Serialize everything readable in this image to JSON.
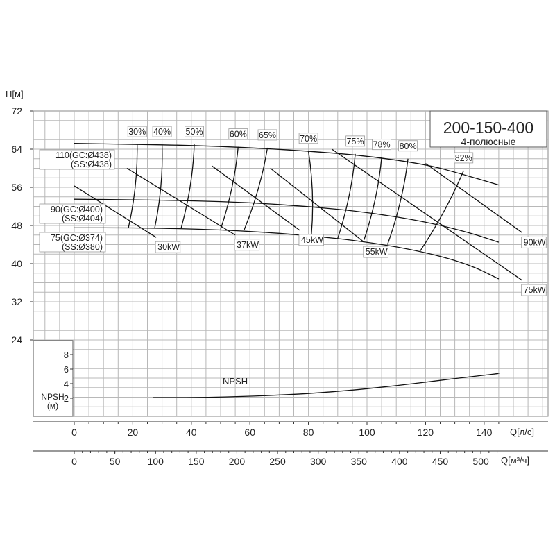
{
  "chart_data": {
    "type": "line",
    "title": "200-150-400",
    "subtitle": "4-полюсные",
    "ylabel": "H[м]",
    "xlabel": "Q[л/с]",
    "xlabel2": "Q[м³/ч]",
    "npsh_label": "NPSH",
    "npsh_ylabel": [
      "NPSH",
      "(м)"
    ],
    "y_ticks": [
      "72",
      "64",
      "56",
      "48",
      "40",
      "32",
      "24"
    ],
    "ylim": [
      24,
      72
    ],
    "x_ticks": [
      "0",
      "20",
      "40",
      "60",
      "80",
      "100",
      "120",
      "140"
    ],
    "xlim": [
      0,
      160
    ],
    "x2_ticks": [
      "0",
      "50",
      "100",
      "150",
      "200",
      "250",
      "300",
      "350",
      "400",
      "450",
      "500"
    ],
    "npsh_ticks": [
      "8",
      "6",
      "4",
      "2"
    ],
    "npsh_ylim": [
      0,
      10
    ],
    "series": [
      {
        "name": "110(GC:Ø438)\n(SS:Ø438)",
        "x": [
          0,
          20,
          40,
          60,
          80,
          100,
          120,
          130,
          145
        ],
        "y": [
          65.2,
          65.0,
          64.8,
          64.3,
          63.6,
          62.6,
          60.8,
          59.2,
          56.5
        ]
      },
      {
        "name": "90(GC:Ø400)\n(SS:Ø404)",
        "x": [
          0,
          20,
          40,
          60,
          80,
          100,
          120,
          135,
          145
        ],
        "y": [
          53.5,
          53.4,
          53.2,
          52.8,
          52.0,
          50.8,
          48.8,
          46.5,
          44.5
        ]
      },
      {
        "name": "75(GC:Ø374)\n(SS:Ø380)",
        "x": [
          0,
          20,
          40,
          60,
          80,
          100,
          120,
          135,
          145
        ],
        "y": [
          47.5,
          47.5,
          47.3,
          46.8,
          45.9,
          44.6,
          42.4,
          39.8,
          36.8
        ]
      }
    ],
    "efficiency": [
      {
        "label": "30%",
        "x": [
          18.5,
          21.5
        ],
        "y": [
          47.5,
          65.0
        ]
      },
      {
        "label": "40%",
        "x": [
          27.5,
          30.0
        ],
        "y": [
          47.5,
          65.0
        ]
      },
      {
        "label": "50%",
        "x": [
          36.5,
          41.0
        ],
        "y": [
          47.4,
          65.0
        ]
      },
      {
        "label": "60%",
        "x": [
          50.0,
          56.0
        ],
        "y": [
          47.2,
          64.5
        ]
      },
      {
        "label": "65%",
        "x": [
          58.0,
          66.0
        ],
        "y": [
          47.0,
          64.3
        ]
      },
      {
        "label": "70%",
        "x": [
          81.0,
          80.0
        ],
        "y": [
          46.0,
          63.6
        ]
      },
      {
        "label": "75%",
        "x": [
          90.0,
          96.0
        ],
        "y": [
          45.3,
          63.0
        ]
      },
      {
        "label": "78%",
        "x": [
          99.0,
          105.0
        ],
        "y": [
          45.0,
          62.3
        ]
      },
      {
        "label": "80%",
        "x": [
          107.0,
          114.0
        ],
        "y": [
          44.0,
          62.0
        ]
      },
      {
        "label": "82%",
        "x": [
          118.0,
          133.0
        ],
        "y": [
          42.5,
          59.5
        ]
      }
    ],
    "power": [
      {
        "label": "30kW",
        "x": [
          0,
          28
        ],
        "y": [
          56.3,
          45.5
        ]
      },
      {
        "label": "37kW",
        "x": [
          18,
          55
        ],
        "y": [
          60.0,
          46.0
        ]
      },
      {
        "label": "45kW",
        "x": [
          47,
          77
        ],
        "y": [
          60.5,
          47.0
        ]
      },
      {
        "label": "55kW",
        "x": [
          67,
          99
        ],
        "y": [
          60.0,
          44.5
        ]
      },
      {
        "label": "75kW",
        "x": [
          88,
          153
        ],
        "y": [
          64.0,
          36.5
        ]
      },
      {
        "label": "90kW",
        "x": [
          120,
          153
        ],
        "y": [
          61.0,
          46.5
        ]
      }
    ],
    "npsh": {
      "x": [
        27,
        45,
        70,
        90,
        110,
        130,
        145
      ],
      "y": [
        2.1,
        2.1,
        2.4,
        2.9,
        3.7,
        4.7,
        5.4
      ]
    },
    "grid": true
  }
}
